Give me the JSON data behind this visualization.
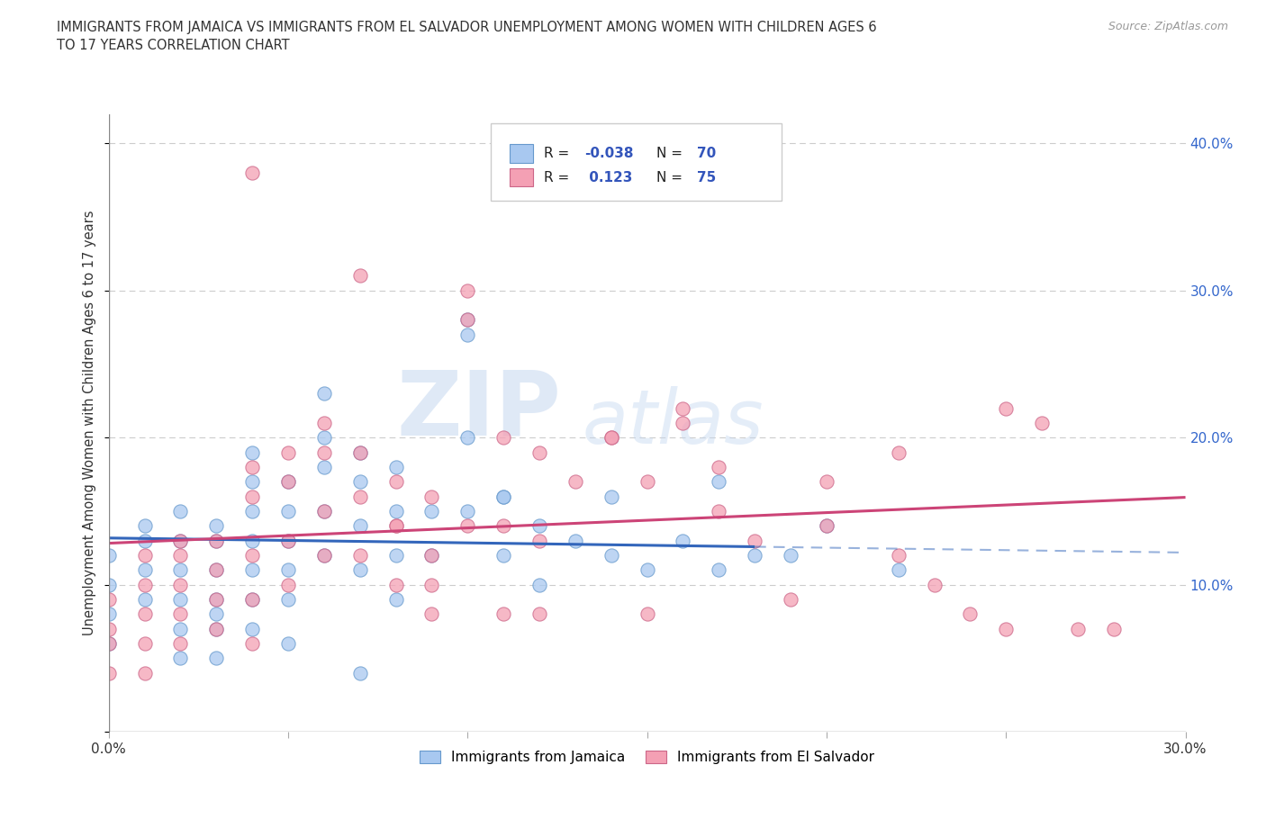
{
  "title": "IMMIGRANTS FROM JAMAICA VS IMMIGRANTS FROM EL SALVADOR UNEMPLOYMENT AMONG WOMEN WITH CHILDREN AGES 6\nTO 17 YEARS CORRELATION CHART",
  "source": "Source: ZipAtlas.com",
  "ylabel": "Unemployment Among Women with Children Ages 6 to 17 years",
  "legend_label_1": "Immigrants from Jamaica",
  "legend_label_2": "Immigrants from El Salvador",
  "color_jamaica": "#a8c8f0",
  "color_elsalvador": "#f4a0b4",
  "edge_jamaica": "#6699cc",
  "edge_elsalvador": "#cc6688",
  "trend_color_jamaica": "#3366bb",
  "trend_color_elsalvador": "#cc4477",
  "R_jamaica": -0.038,
  "N_jamaica": 70,
  "R_elsalvador": 0.123,
  "N_elsalvador": 75,
  "xlim": [
    0.0,
    0.3
  ],
  "ylim": [
    0.0,
    0.42
  ],
  "xticks": [
    0.0,
    0.05,
    0.1,
    0.15,
    0.2,
    0.25,
    0.3
  ],
  "yticks": [
    0.0,
    0.1,
    0.2,
    0.3,
    0.4
  ],
  "background_color": "#ffffff",
  "grid_color": "#cccccc",
  "watermark_zip": "ZIP",
  "watermark_atlas": "atlas",
  "jamaica_x": [
    0.0,
    0.0,
    0.0,
    0.0,
    0.01,
    0.01,
    0.01,
    0.01,
    0.02,
    0.02,
    0.02,
    0.02,
    0.02,
    0.02,
    0.03,
    0.03,
    0.03,
    0.03,
    0.03,
    0.03,
    0.03,
    0.04,
    0.04,
    0.04,
    0.04,
    0.04,
    0.04,
    0.04,
    0.05,
    0.05,
    0.05,
    0.05,
    0.05,
    0.06,
    0.06,
    0.06,
    0.06,
    0.07,
    0.07,
    0.07,
    0.07,
    0.08,
    0.08,
    0.08,
    0.08,
    0.09,
    0.09,
    0.1,
    0.1,
    0.1,
    0.11,
    0.11,
    0.12,
    0.12,
    0.13,
    0.14,
    0.15,
    0.16,
    0.17,
    0.18,
    0.19,
    0.2,
    0.22,
    0.05,
    0.06,
    0.07,
    0.1,
    0.11,
    0.14,
    0.17
  ],
  "jamaica_y": [
    0.12,
    0.1,
    0.08,
    0.06,
    0.14,
    0.13,
    0.11,
    0.09,
    0.15,
    0.13,
    0.11,
    0.09,
    0.07,
    0.05,
    0.14,
    0.13,
    0.11,
    0.09,
    0.08,
    0.07,
    0.05,
    0.19,
    0.17,
    0.15,
    0.13,
    0.11,
    0.09,
    0.07,
    0.17,
    0.15,
    0.13,
    0.11,
    0.09,
    0.2,
    0.18,
    0.15,
    0.12,
    0.19,
    0.17,
    0.14,
    0.11,
    0.18,
    0.15,
    0.12,
    0.09,
    0.15,
    0.12,
    0.28,
    0.2,
    0.15,
    0.16,
    0.12,
    0.14,
    0.1,
    0.13,
    0.12,
    0.11,
    0.13,
    0.11,
    0.12,
    0.12,
    0.14,
    0.11,
    0.06,
    0.23,
    0.04,
    0.27,
    0.16,
    0.16,
    0.17
  ],
  "elsalvador_x": [
    0.0,
    0.0,
    0.0,
    0.0,
    0.01,
    0.01,
    0.01,
    0.01,
    0.01,
    0.02,
    0.02,
    0.02,
    0.02,
    0.02,
    0.03,
    0.03,
    0.03,
    0.03,
    0.04,
    0.04,
    0.04,
    0.04,
    0.04,
    0.05,
    0.05,
    0.05,
    0.05,
    0.06,
    0.06,
    0.06,
    0.06,
    0.07,
    0.07,
    0.07,
    0.08,
    0.08,
    0.08,
    0.09,
    0.09,
    0.1,
    0.1,
    0.11,
    0.11,
    0.12,
    0.12,
    0.13,
    0.14,
    0.15,
    0.16,
    0.17,
    0.18,
    0.2,
    0.22,
    0.23,
    0.24,
    0.25,
    0.04,
    0.07,
    0.09,
    0.1,
    0.12,
    0.15,
    0.17,
    0.2,
    0.22,
    0.25,
    0.26,
    0.27,
    0.28,
    0.08,
    0.09,
    0.11,
    0.14,
    0.16,
    0.19
  ],
  "elsalvador_y": [
    0.09,
    0.07,
    0.06,
    0.04,
    0.12,
    0.1,
    0.08,
    0.06,
    0.04,
    0.13,
    0.12,
    0.1,
    0.08,
    0.06,
    0.13,
    0.11,
    0.09,
    0.07,
    0.18,
    0.16,
    0.12,
    0.09,
    0.06,
    0.19,
    0.17,
    0.13,
    0.1,
    0.21,
    0.19,
    0.15,
    0.12,
    0.19,
    0.16,
    0.12,
    0.17,
    0.14,
    0.1,
    0.16,
    0.12,
    0.3,
    0.14,
    0.2,
    0.14,
    0.19,
    0.13,
    0.17,
    0.2,
    0.17,
    0.21,
    0.15,
    0.13,
    0.14,
    0.12,
    0.1,
    0.08,
    0.07,
    0.38,
    0.31,
    0.1,
    0.28,
    0.08,
    0.08,
    0.18,
    0.17,
    0.19,
    0.22,
    0.21,
    0.07,
    0.07,
    0.14,
    0.08,
    0.08,
    0.2,
    0.22,
    0.09
  ]
}
